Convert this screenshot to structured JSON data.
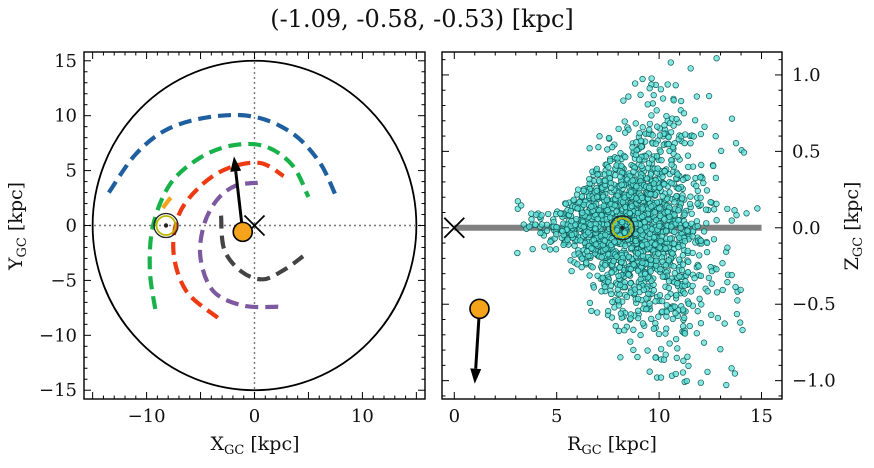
{
  "figure": {
    "title": "(-1.09, -0.58, -0.53) [kpc]"
  },
  "colors": {
    "frame": "#000000",
    "orange_marker": "#f5a31a",
    "track_gray": "#808080",
    "scatter_face": "#5ce0d8",
    "scatter_edge": "#0f5b57",
    "arm_blue": "#1f5fa0",
    "arm_green": "#18b24a",
    "arm_orange": "#f5a31a",
    "arm_red": "#ee3a12",
    "arm_purple": "#7d5aa0",
    "arm_dark": "#444444",
    "sun_ring": "#b8b800"
  },
  "chart_data": [
    {
      "type": "scatter",
      "panel": "left",
      "xlabel": "X_GC [kpc]",
      "ylabel": "Y_GC [kpc]",
      "xlim": [
        -15.8,
        15.8
      ],
      "ylim": [
        -15.8,
        15.8
      ],
      "xticks": [
        -10,
        0,
        10
      ],
      "yticks": [
        -15,
        -10,
        -5,
        0,
        5,
        10,
        15
      ],
      "grid": false,
      "galaxy_boundary_radius": 15,
      "galactic_center": [
        0,
        0
      ],
      "sun": [
        -8.2,
        0
      ],
      "object": {
        "x": -1.09,
        "y": -0.58
      },
      "velocity_arrow": {
        "from": [
          -1.09,
          -0.58
        ],
        "to": [
          -1.9,
          6.3
        ]
      },
      "spiral_arms": [
        {
          "color_key": "arm_blue",
          "points": [
            [
              -13.5,
              3.0
            ],
            [
              -11,
              6.5
            ],
            [
              -8,
              8.8
            ],
            [
              -4,
              9.9
            ],
            [
              0,
              9.9
            ],
            [
              3.5,
              8.4
            ],
            [
              6,
              5.8
            ],
            [
              7.5,
              2.8
            ]
          ]
        },
        {
          "color_key": "arm_green",
          "points": [
            [
              -9.2,
              -7.6
            ],
            [
              -9.7,
              -4
            ],
            [
              -9.4,
              0
            ],
            [
              -7.8,
              3.8
            ],
            [
              -5,
              6.2
            ],
            [
              -2,
              7.3
            ],
            [
              1,
              7.2
            ],
            [
              3.5,
              5.5
            ],
            [
              5,
              2.6
            ]
          ]
        },
        {
          "color_key": "arm_orange",
          "points": [
            [
              -8.5,
              1.6
            ],
            [
              -7.7,
              2.6
            ],
            [
              -7.4,
              2.7
            ]
          ]
        },
        {
          "color_key": "arm_red",
          "points": [
            [
              -3.4,
              -8.4
            ],
            [
              -6.3,
              -6
            ],
            [
              -7.5,
              -2.5
            ],
            [
              -7.0,
              1
            ],
            [
              -5.0,
              3.6
            ],
            [
              -2.5,
              5.2
            ],
            [
              0.5,
              5.7
            ],
            [
              2.7,
              4.5
            ]
          ]
        },
        {
          "color_key": "arm_purple",
          "points": [
            [
              2.2,
              -7.4
            ],
            [
              -1,
              -7.3
            ],
            [
              -3.8,
              -6
            ],
            [
              -5,
              -3
            ],
            [
              -4.7,
              0
            ],
            [
              -3.5,
              2.3
            ],
            [
              -1.8,
              3.6
            ],
            [
              0.3,
              3.9
            ]
          ]
        },
        {
          "color_key": "arm_dark",
          "points": [
            [
              -3.1,
              0.9
            ],
            [
              -2.8,
              -2.2
            ],
            [
              -1.2,
              -4.2
            ],
            [
              0.8,
              -4.9
            ],
            [
              2.8,
              -4.0
            ],
            [
              4.5,
              -2.8
            ]
          ]
        }
      ]
    },
    {
      "type": "scatter",
      "panel": "right",
      "xlabel": "R_GC [kpc]",
      "ylabel": "Z_GC [kpc]",
      "xlim": [
        -0.6,
        16
      ],
      "ylim": [
        -1.12,
        1.15
      ],
      "xticks": [
        0,
        5,
        10,
        15
      ],
      "yticks": [
        -1.0,
        -0.5,
        0.0,
        0.5,
        1.0
      ],
      "ytick_labels": [
        "−1.0",
        "−0.5",
        "0.0",
        "0.5",
        "1.0"
      ],
      "grid": false,
      "disk_line": {
        "x": [
          0,
          15
        ],
        "y": 0.0
      },
      "galactic_center": [
        0,
        0
      ],
      "sun": [
        8.2,
        0
      ],
      "object": {
        "R": 1.23,
        "Z": -0.53
      },
      "velocity_arrow": {
        "from": [
          1.23,
          -0.53
        ],
        "to": [
          1.0,
          -1.02
        ]
      },
      "stars": {
        "count": 1800,
        "R_mean": 8.8,
        "R_std": 1.9,
        "R_range": [
          3.0,
          15.8
        ],
        "Z_std_base": 0.05,
        "Z_std_growth_per_kpc": 0.045,
        "Z_range": [
          -1.1,
          1.12
        ]
      }
    }
  ]
}
